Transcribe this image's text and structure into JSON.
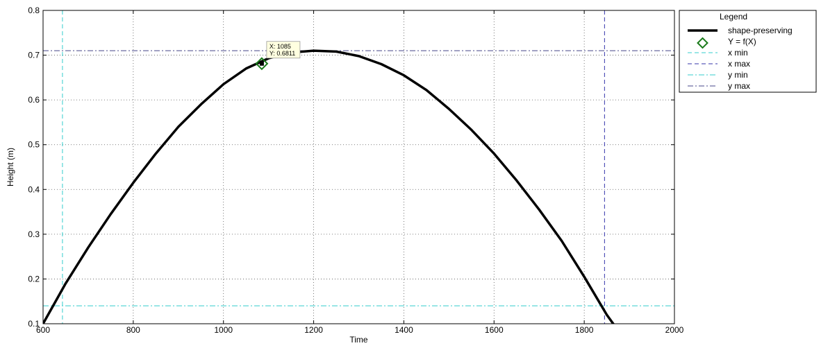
{
  "chart_data": {
    "type": "line",
    "xlabel": "Time",
    "ylabel": "Height (m)",
    "xlim": [
      600,
      2000
    ],
    "ylim": [
      0.1,
      0.8
    ],
    "xticks": [
      600,
      800,
      1000,
      1200,
      1400,
      1600,
      1800,
      2000
    ],
    "yticks": [
      0.1,
      0.2,
      0.3,
      0.4,
      0.5,
      0.6,
      0.7,
      0.8
    ],
    "grid": true,
    "legend_position": "outside-top-right",
    "series": [
      {
        "name": "shape-preserving",
        "style": "solid",
        "color": "#000000",
        "x": [
          600,
          650,
          700,
          750,
          800,
          850,
          900,
          950,
          1000,
          1050,
          1100,
          1150,
          1200,
          1250,
          1300,
          1350,
          1400,
          1450,
          1500,
          1550,
          1600,
          1650,
          1700,
          1750,
          1800,
          1850,
          1870
        ],
        "y": [
          0.1,
          0.19,
          0.27,
          0.345,
          0.415,
          0.48,
          0.54,
          0.59,
          0.635,
          0.67,
          0.693,
          0.706,
          0.71,
          0.708,
          0.698,
          0.68,
          0.655,
          0.622,
          0.58,
          0.533,
          0.48,
          0.42,
          0.355,
          0.285,
          0.205,
          0.12,
          0.092
        ]
      },
      {
        "name": "Y = f(X)",
        "style": "marker-diamond",
        "color": "#1a7a1a",
        "x": [
          1085
        ],
        "y": [
          0.6811
        ]
      },
      {
        "name": "x min",
        "style": "vline-dashed",
        "color": "#33cccc",
        "value": 643
      },
      {
        "name": "x max",
        "style": "vline-dashed",
        "color": "#3333aa",
        "value": 1845
      },
      {
        "name": "y min",
        "style": "hline-dashdot",
        "color": "#33cccc",
        "value": 0.14
      },
      {
        "name": "y max",
        "style": "hline-dashdot",
        "color": "#444488",
        "value": 0.71
      }
    ],
    "legend": {
      "title": "Legend",
      "entries": [
        "shape-preserving",
        "Y = f(X)",
        "x min",
        "x max",
        "y min",
        "y max"
      ]
    },
    "datatip": {
      "x_text": "X: 1085",
      "y_text": "Y: 0.6811",
      "x": 1085,
      "y": 0.6811
    }
  }
}
